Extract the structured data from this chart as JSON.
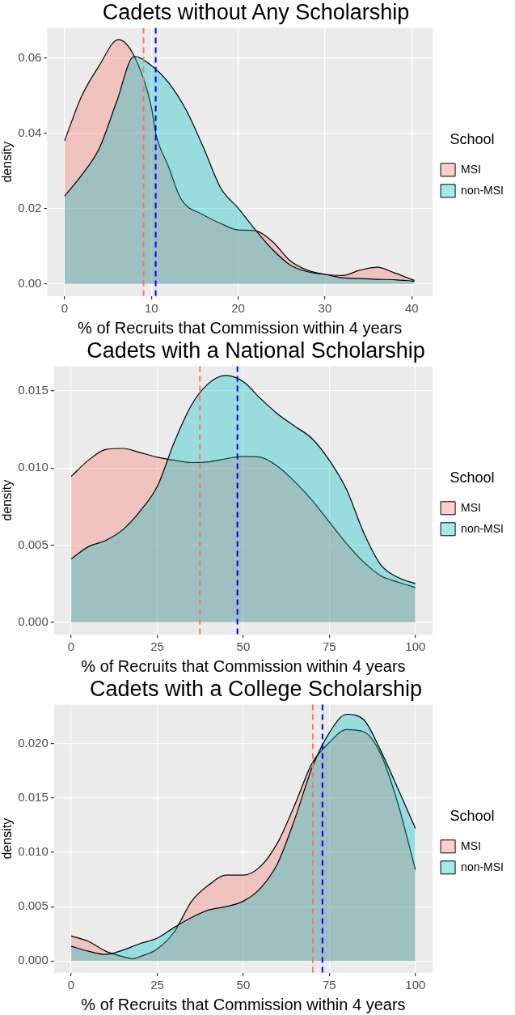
{
  "chart_data": [
    {
      "type": "area",
      "title": "Cadets without Any Scholarship",
      "xlabel": "% of Recruits that Commission within 4 years",
      "ylabel": "density",
      "legend_title": "School",
      "legend": "right",
      "grid": true,
      "x": [
        0,
        2,
        4,
        6.2,
        8,
        10,
        10.5,
        12,
        13.4,
        16,
        18,
        20,
        22,
        24,
        26,
        28,
        30,
        32,
        34,
        36,
        38,
        40.3
      ],
      "series": [
        {
          "name": "MSI",
          "color": "#f8766d",
          "values": [
            0.038,
            0.05,
            0.058,
            0.0649,
            0.0606,
            0.047,
            0.04,
            0.031,
            0.0226,
            0.0183,
            0.016,
            0.0143,
            0.0141,
            0.0111,
            0.0061,
            0.0036,
            0.0025,
            0.0022,
            0.0036,
            0.0044,
            0.0029,
            0.0009
          ]
        },
        {
          "name": "non-MSI",
          "color": "#00bfc4",
          "x": [
            0,
            2,
            4,
            6,
            8,
            10,
            12,
            14,
            16,
            18,
            20,
            22,
            24,
            26,
            28,
            30,
            32,
            34,
            36,
            38,
            40.3
          ],
          "values": [
            0.0233,
            0.029,
            0.036,
            0.0484,
            0.0604,
            0.058,
            0.0534,
            0.0462,
            0.0362,
            0.0254,
            0.0201,
            0.0143,
            0.009,
            0.005,
            0.0032,
            0.0025,
            0.0016,
            0.0014,
            0.0012,
            0.0011,
            0.0007
          ]
        }
      ],
      "ref_lines": [
        {
          "axis": "x",
          "value": 9.1,
          "color": "#f8766d",
          "line_style": "dashed"
        },
        {
          "axis": "x",
          "value": 10.5,
          "color": "#0000ff",
          "line_style": "dashed"
        }
      ],
      "xlim": [
        -2,
        42.4
      ],
      "xticks": [
        0,
        10,
        20,
        30,
        40
      ],
      "ylim": [
        -0.0033,
        0.068
      ],
      "yticks": [
        {
          "value": 0,
          "label": "0.00"
        },
        {
          "value": 0.02,
          "label": "0.02"
        },
        {
          "value": 0.04,
          "label": "0.04"
        },
        {
          "value": 0.06,
          "label": "0.06"
        }
      ]
    },
    {
      "type": "area",
      "title": "Cadets with a National Scholarship",
      "xlabel": "% of Recruits that Commission within 4 years",
      "ylabel": "density",
      "legend_title": "School",
      "legend": "right",
      "grid": true,
      "x": [
        0,
        5,
        10,
        15,
        20,
        25,
        30,
        35,
        40,
        45,
        50,
        55,
        60,
        65,
        70,
        75,
        80,
        85,
        90,
        95,
        100
      ],
      "series": [
        {
          "name": "MSI",
          "color": "#f8766d",
          "values": [
            0.00945,
            0.0105,
            0.0112,
            0.01127,
            0.011,
            0.0107,
            0.0105,
            0.01035,
            0.0104,
            0.0106,
            0.01075,
            0.0107,
            0.0101,
            0.0091,
            0.0079,
            0.0065,
            0.0051,
            0.0039,
            0.003,
            0.0026,
            0.00225
          ]
        },
        {
          "name": "non-MSI",
          "color": "#00bfc4",
          "values": [
            0.0041,
            0.0049,
            0.0053,
            0.006,
            0.0072,
            0.0088,
            0.0117,
            0.0141,
            0.0155,
            0.016,
            0.0156,
            0.0145,
            0.0135,
            0.0127,
            0.0119,
            0.0105,
            0.0086,
            0.0058,
            0.0037,
            0.0029,
            0.0025
          ]
        }
      ],
      "ref_lines": [
        {
          "axis": "x",
          "value": 37.4,
          "color": "#f8766d",
          "line_style": "dashed"
        },
        {
          "axis": "x",
          "value": 48.3,
          "color": "#0000ff",
          "line_style": "dashed"
        }
      ],
      "xlim": [
        -5,
        105
      ],
      "xticks": [
        0,
        25,
        50,
        75,
        100
      ],
      "ylim": [
        -0.0008,
        0.0166
      ],
      "yticks": [
        {
          "value": 0,
          "label": "0.000"
        },
        {
          "value": 0.005,
          "label": "0.005"
        },
        {
          "value": 0.01,
          "label": "0.010"
        },
        {
          "value": 0.015,
          "label": "0.015"
        }
      ]
    },
    {
      "type": "area",
      "title": "Cadets with a College Scholarship",
      "xlabel": "% of Recruits that Commission within 4 years",
      "ylabel": "density",
      "legend_title": "School",
      "legend": "right",
      "grid": true,
      "x": [
        0,
        5,
        10,
        15,
        18,
        20,
        25,
        30,
        35,
        40,
        45,
        50,
        55,
        60,
        65,
        70,
        75,
        80,
        85,
        90,
        95,
        100
      ],
      "series": [
        {
          "name": "MSI",
          "color": "#f8766d",
          "values": [
            0.0023,
            0.0018,
            0.0009,
            0.0004,
            0.0002,
            0.0004,
            0.0011,
            0.0027,
            0.0055,
            0.007,
            0.0079,
            0.0079,
            0.0087,
            0.0109,
            0.0144,
            0.0182,
            0.0201,
            0.0213,
            0.0211,
            0.019,
            0.0144,
            0.0084
          ]
        },
        {
          "name": "non-MSI",
          "color": "#00bfc4",
          "x": [
            0,
            5,
            10,
            15,
            20,
            25,
            30,
            35,
            40,
            45,
            50,
            55,
            60,
            65,
            70,
            75,
            80,
            85,
            90,
            95,
            100
          ],
          "values": [
            0.00135,
            0.0009,
            0.0006,
            0.001,
            0.0016,
            0.0021,
            0.0031,
            0.004,
            0.0047,
            0.005,
            0.0055,
            0.0067,
            0.009,
            0.0131,
            0.0178,
            0.021,
            0.0227,
            0.0222,
            0.0193,
            0.0158,
            0.0122
          ]
        }
      ],
      "ref_lines": [
        {
          "axis": "x",
          "value": 70.2,
          "color": "#f8766d",
          "line_style": "dashed"
        },
        {
          "axis": "x",
          "value": 73.0,
          "color": "#0000ff",
          "line_style": "dashed"
        }
      ],
      "xlim": [
        -5,
        105
      ],
      "xticks": [
        0,
        25,
        50,
        75,
        100
      ],
      "ylim": [
        -0.0011,
        0.0236
      ],
      "yticks": [
        {
          "value": 0,
          "label": "0.000"
        },
        {
          "value": 0.005,
          "label": "0.005"
        },
        {
          "value": 0.01,
          "label": "0.010"
        },
        {
          "value": 0.015,
          "label": "0.015"
        },
        {
          "value": 0.02,
          "label": "0.020"
        }
      ]
    }
  ]
}
